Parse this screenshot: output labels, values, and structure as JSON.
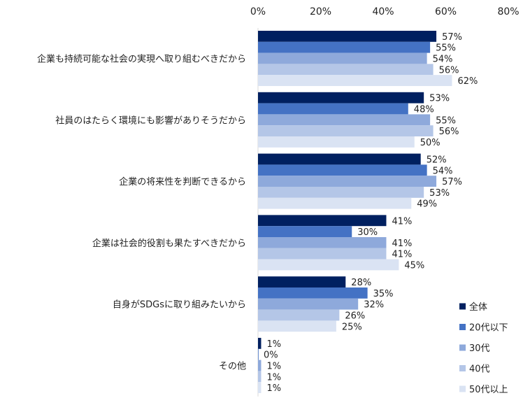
{
  "chart_data": {
    "type": "bar",
    "orientation": "horizontal",
    "xlim": [
      0,
      80
    ],
    "x_ticks": [
      "0%",
      "20%",
      "40%",
      "60%",
      "80%"
    ],
    "x_tick_values": [
      0,
      20,
      40,
      60,
      80
    ],
    "grid": false,
    "legend_position": "bottom-right",
    "categories": [
      "企業も持続可能な社会の実現へ取り組むべきだから",
      "社員のはたらく環境にも影響がありそうだから",
      "企業の将来性を判断できるから",
      "企業は社会的役割も果たすべきだから",
      "自身がSDGsに取り組みたいから",
      "その他"
    ],
    "series": [
      {
        "name": "全体",
        "color": "#002060",
        "values": [
          57,
          53,
          52,
          41,
          28,
          1
        ]
      },
      {
        "name": "20代以下",
        "color": "#4472C4",
        "values": [
          55,
          48,
          54,
          30,
          35,
          0
        ]
      },
      {
        "name": "30代",
        "color": "#8EA9DB",
        "values": [
          54,
          55,
          57,
          41,
          32,
          1
        ]
      },
      {
        "name": "40代",
        "color": "#B4C6E7",
        "values": [
          56,
          56,
          53,
          41,
          26,
          1
        ]
      },
      {
        "name": "50代以上",
        "color": "#DAE3F3",
        "values": [
          62,
          50,
          49,
          45,
          25,
          1
        ]
      }
    ],
    "value_labels": [
      [
        "57%",
        "55%",
        "54%",
        "56%",
        "62%"
      ],
      [
        "53%",
        "48%",
        "55%",
        "56%",
        "50%"
      ],
      [
        "52%",
        "54%",
        "57%",
        "53%",
        "49%"
      ],
      [
        "41%",
        "30%",
        "41%",
        "41%",
        "45%"
      ],
      [
        "28%",
        "35%",
        "32%",
        "26%",
        "25%"
      ],
      [
        "1%",
        "0%",
        "1%",
        "1%",
        "1%"
      ]
    ]
  }
}
